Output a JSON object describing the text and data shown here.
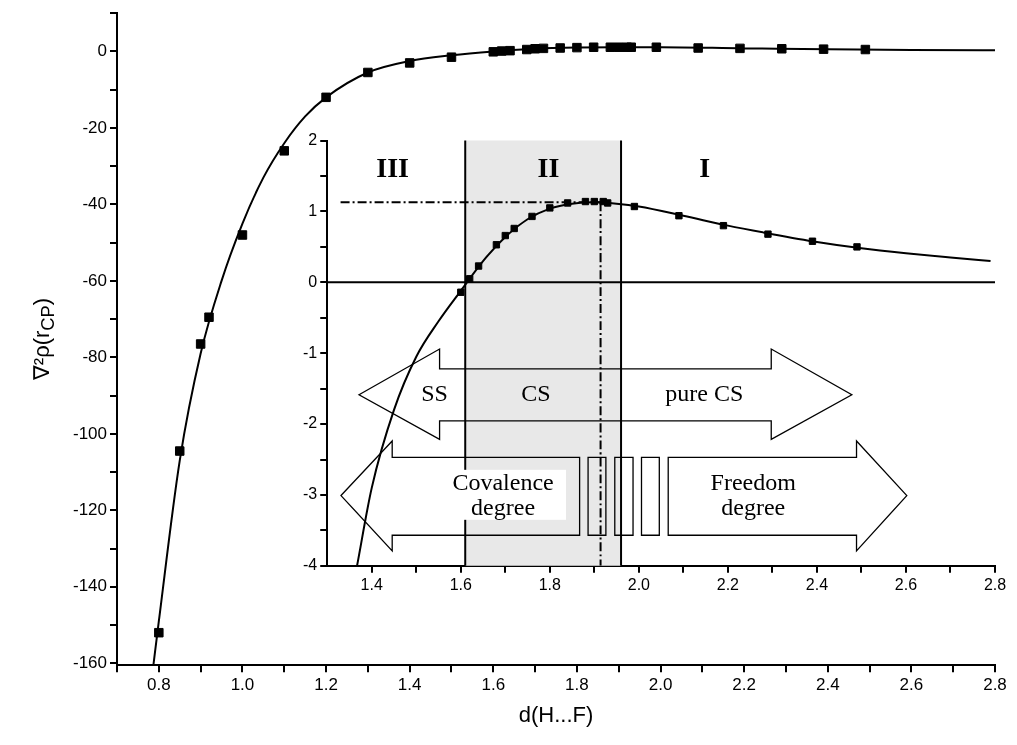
{
  "chart_data": [
    {
      "type": "scatter",
      "xlabel": "d(H...F)",
      "ylabel": "∇²ρ(r$_{CP}$)",
      "marker": "square",
      "xlim": [
        0.7,
        2.8
      ],
      "xticks": [
        {
          "value": 0.7,
          "label": null
        },
        0.8,
        {
          "value": 0.9,
          "label": null
        },
        {
          "value": 1.0,
          "label": "1.0"
        },
        {
          "value": 1.1,
          "label": null
        },
        1.2,
        {
          "value": 1.3,
          "label": null
        },
        1.4,
        {
          "value": 1.5,
          "label": null
        },
        1.6,
        {
          "value": 1.7,
          "label": null
        },
        1.8,
        {
          "value": 1.9,
          "label": null
        },
        {
          "value": 2.0,
          "label": "2.0"
        },
        {
          "value": 2.1,
          "label": null
        },
        2.2,
        {
          "value": 2.3,
          "label": null
        },
        2.4,
        {
          "value": 2.5,
          "label": null
        },
        2.6,
        {
          "value": 2.7,
          "label": null
        },
        2.8
      ],
      "ylim": [
        -160.5,
        10
      ],
      "yticks": [
        {
          "value": 10,
          "label": null
        },
        0,
        {
          "value": -10,
          "label": null
        },
        -20,
        {
          "value": -30,
          "label": null
        },
        -40,
        {
          "value": -50,
          "label": null
        },
        -60,
        {
          "value": -70,
          "label": null
        },
        -80,
        {
          "value": -90,
          "label": null
        },
        -100,
        {
          "value": -110,
          "label": null
        },
        -120,
        {
          "value": -130,
          "label": null
        },
        -140,
        {
          "value": -150,
          "label": null
        },
        -160
      ],
      "series": [
        {
          "type": "scatter",
          "color": "#000000",
          "x": [
            0.8,
            0.85,
            0.9,
            0.92,
            1.0,
            1.1,
            1.2,
            1.3,
            1.4,
            1.5,
            1.6,
            1.62,
            1.64,
            1.68,
            1.7,
            1.72,
            1.76,
            1.8,
            1.84,
            1.88,
            1.9,
            1.92,
            1.93,
            1.99,
            2.09,
            2.19,
            2.29,
            2.39,
            2.49
          ],
          "values": [
            -152,
            -104.5,
            -76.5,
            -69.5,
            -48,
            -26,
            -12,
            -5.5,
            -3,
            -1.5,
            -0.1,
            0.1,
            0.2,
            0.5,
            0.7,
            0.8,
            0.9,
            1,
            1.1,
            1.1,
            1.1,
            1.1,
            1.1,
            1.1,
            0.9,
            0.8,
            0.7,
            0.6,
            0.5
          ]
        },
        {
          "type": "line",
          "marker": "none",
          "color": "#000000",
          "x": [
            0.787,
            0.8,
            0.85,
            0.9,
            0.95,
            1.0,
            1.05,
            1.1,
            1.15,
            1.2,
            1.3,
            1.4,
            1.5,
            1.6,
            1.7,
            1.8,
            1.9,
            2.0,
            2.2,
            2.4,
            2.6,
            2.8
          ],
          "values": [
            -160.5,
            -149,
            -107,
            -79,
            -60,
            -45,
            -33,
            -24,
            -17,
            -12,
            -5.5,
            -2.5,
            -1,
            0,
            0.7,
            1,
            1.1,
            1.1,
            0.8,
            0.6,
            0.4,
            0.3
          ]
        }
      ]
    },
    {
      "type": "scatter",
      "marker": "square",
      "xlim": [
        1.3,
        2.8
      ],
      "xticks": [
        1.4,
        {
          "value": 1.5,
          "label": null
        },
        1.6,
        {
          "value": 1.7,
          "label": null
        },
        1.8,
        {
          "value": 1.9,
          "label": null
        },
        {
          "value": 2.0,
          "label": "2.0"
        },
        {
          "value": 2.1,
          "label": null
        },
        2.2,
        {
          "value": 2.3,
          "label": null
        },
        2.4,
        {
          "value": 2.5,
          "label": null
        },
        2.6,
        {
          "value": 2.7,
          "label": null
        },
        2.8
      ],
      "ylim": [
        -4,
        2
      ],
      "yticks": [
        -4,
        {
          "value": -3.5,
          "label": null
        },
        -3,
        {
          "value": -2.5,
          "label": null
        },
        -2,
        {
          "value": -1.5,
          "label": null
        },
        -1,
        {
          "value": -0.5,
          "label": null
        },
        0,
        {
          "value": 0.5,
          "label": null
        },
        1,
        {
          "value": 1.5,
          "label": null
        },
        2
      ],
      "bands": [
        {
          "axis": "x",
          "from": 1.61,
          "to": 1.96,
          "color": "#e8e8e8"
        }
      ],
      "ref_lines": [
        {
          "axis": "x",
          "value": 1.61,
          "color": "#000000"
        },
        {
          "axis": "x",
          "value": 1.96,
          "color": "#000000"
        },
        {
          "axis": "y",
          "value": 0,
          "color": "#000000"
        }
      ],
      "annotations": [
        "III",
        "II",
        "I",
        "SS",
        "CS",
        "pure CS",
        "Covalence degree",
        "Freedom degree"
      ],
      "series": [
        {
          "type": "line",
          "marker": "none",
          "line_style": "dashed",
          "color": "#000000",
          "x": [
            1.33,
            1.914
          ],
          "values": [
            1.13,
            1.13
          ]
        },
        {
          "type": "line",
          "marker": "none",
          "line_style": "dashed",
          "color": "#000000",
          "x": [
            1.914,
            1.914
          ],
          "values": [
            1.13,
            -4
          ]
        },
        {
          "type": "line",
          "marker": "none",
          "color": "#000000",
          "x": [
            1.367,
            1.4,
            1.45,
            1.5,
            1.55,
            1.6,
            1.65,
            1.7,
            1.75,
            1.8,
            1.85,
            1.9,
            1.95,
            2.0,
            2.1,
            2.2,
            2.3,
            2.4,
            2.5,
            2.6,
            2.7,
            2.79
          ],
          "values": [
            -4,
            -2.9,
            -1.8,
            -1.05,
            -0.55,
            -0.12,
            0.3,
            0.64,
            0.89,
            1.04,
            1.11,
            1.13,
            1.11,
            1.07,
            0.94,
            0.8,
            0.68,
            0.57,
            0.48,
            0.41,
            0.35,
            0.3
          ]
        },
        {
          "type": "scatter",
          "color": "#000000",
          "x": [
            1.6,
            1.62,
            1.64,
            1.68,
            1.7,
            1.72,
            1.76,
            1.8,
            1.84,
            1.88,
            1.9,
            1.92,
            1.93,
            1.99,
            2.09,
            2.19,
            2.29,
            2.39,
            2.49
          ],
          "values": [
            -0.14,
            0.05,
            0.23,
            0.53,
            0.66,
            0.76,
            0.93,
            1.05,
            1.12,
            1.14,
            1.14,
            1.14,
            1.12,
            1.07,
            0.94,
            0.8,
            0.68,
            0.58,
            0.5
          ]
        }
      ]
    }
  ]
}
